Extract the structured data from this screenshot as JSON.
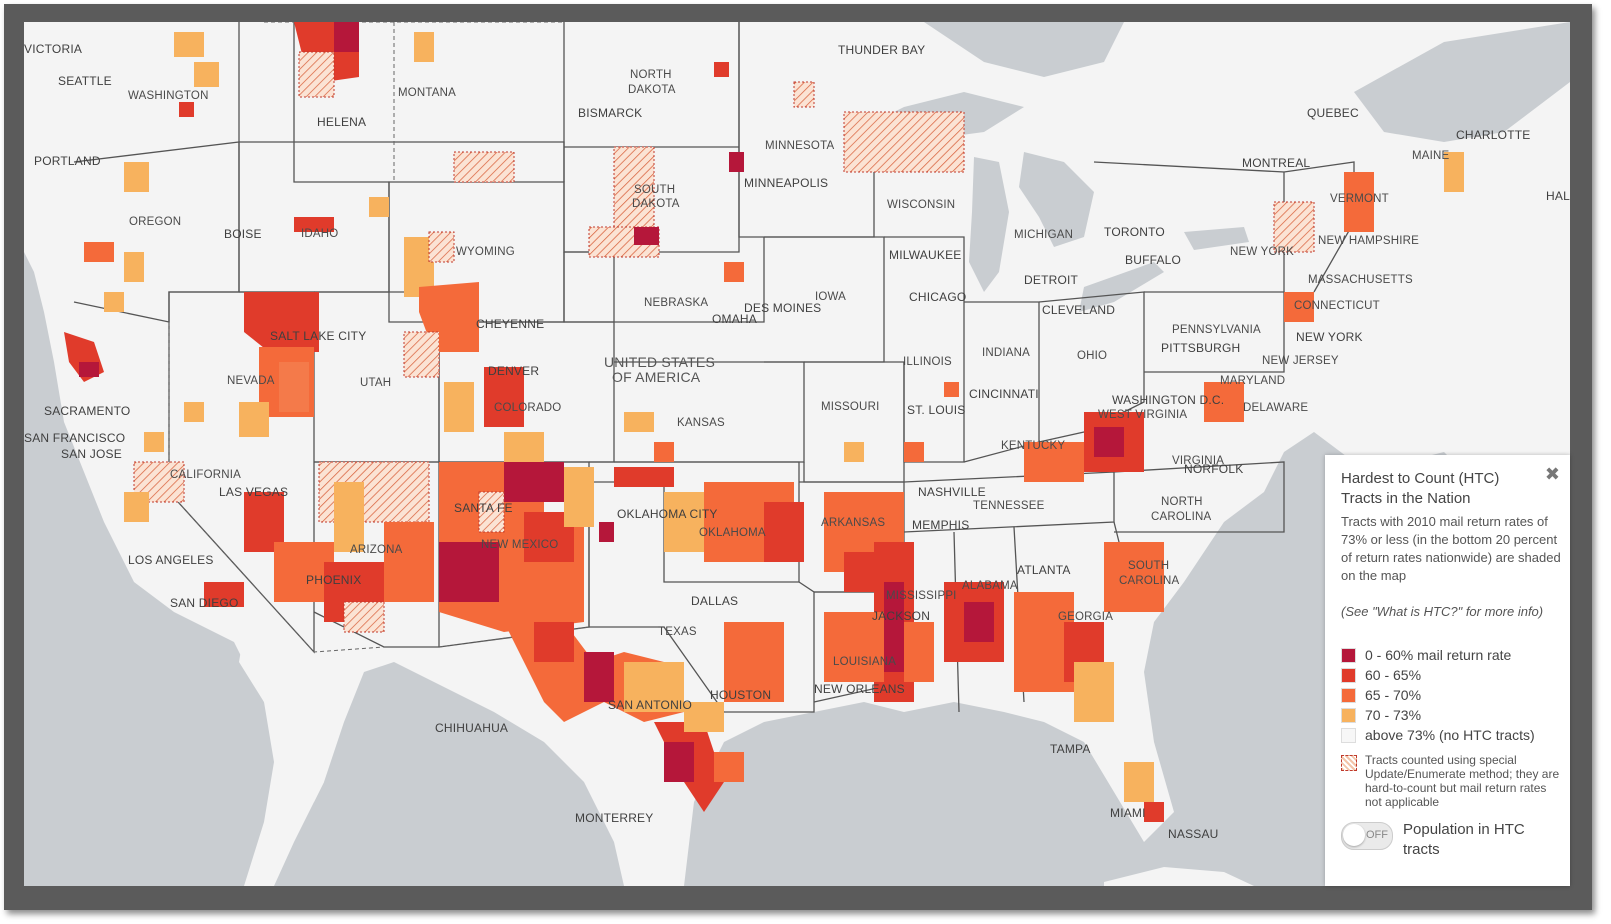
{
  "map": {
    "countries": [
      "UNITED STATES",
      "OF AMERICA"
    ],
    "states": [
      "WASHINGTON",
      "MONTANA",
      "NORTH",
      "DAKOTA",
      "MINNESOTA",
      "OREGON",
      "IDAHO",
      "WYOMING",
      "SOUTH",
      "DAKOTA",
      "WISCONSIN",
      "MICHIGAN",
      "NEW YORK",
      "VERMONT",
      "NEW HAMPSHIRE",
      "MASSACHUSETTS",
      "CONNECTICUT",
      "NEBRASKA",
      "IOWA",
      "NEVADA",
      "UTAH",
      "COLORADO",
      "KANSAS",
      "MISSOURI",
      "ILLINOIS",
      "INDIANA",
      "OHIO",
      "PENNSYLVANIA",
      "NEW JERSEY",
      "MARYLAND",
      "DELAWARE",
      "WEST VIRGINIA",
      "VIRGINIA",
      "KENTUCKY",
      "CALIFORNIA",
      "ARIZONA",
      "NEW MEXICO",
      "OKLAHOMA",
      "ARKANSAS",
      "TENNESSEE",
      "NORTH",
      "CAROLINA",
      "SOUTH",
      "CAROLINA",
      "MISSISSIPPI",
      "ALABAMA",
      "GEORGIA",
      "TEXAS",
      "LOUISIANA",
      "MAINE"
    ],
    "cities": [
      "VICTORIA",
      "SEATTLE",
      "PORTLAND",
      "HELENA",
      "BISMARCK",
      "THUNDER BAY",
      "QUEBEC",
      "CHARLOTTE",
      "HAL",
      "MONTREAL",
      "MINNEAPOLIS",
      "BOISE",
      "TORONTO",
      "BUFFALO",
      "MILWAUKEE",
      "DETROIT",
      "CHICAGO",
      "CLEVELAND",
      "PITTSBURGH",
      "NEW YORK",
      "CHEYENNE",
      "SALT LAKE CITY",
      "DES MOINES",
      "OMAHA",
      "DENVER",
      "SACRAMENTO",
      "SAN FRANCISCO",
      "SAN JOSE",
      "LAS VEGAS",
      "LOS ANGELES",
      "SAN DIEGO",
      "PHOENIX",
      "SANTA FE",
      "OKLAHOMA CITY",
      "ST. LOUIS",
      "CINCINNATI",
      "WASHINGTON D.C.",
      "NORFOLK",
      "NASHVILLE",
      "MEMPHIS",
      "ATLANTA",
      "JACKSON",
      "DALLAS",
      "HOUSTON",
      "NEW ORLEANS",
      "SAN ANTONIO",
      "CHIHUAHUA",
      "MONTERREY",
      "TAMPA",
      "MIAMI",
      "NASSAU"
    ]
  },
  "colors": {
    "c0_60": "#b5173a",
    "c60_65": "#e03b2b",
    "c65_70": "#f46a3a",
    "c70_73": "#f7b25e",
    "above73": "#f7f7f7",
    "land": "#f4f4f4",
    "water": "#c9cdd1"
  },
  "legend": {
    "title": "Hardest to Count (HTC) Tracts in the Nation",
    "description": "Tracts with 2010 mail return rates of 73% or less (in the bottom 20 percent of return rates nationwide) are shaded on the map",
    "note": "(See \"What is HTC?\" for more info)",
    "items": [
      {
        "label": "0 - 60% mail return rate",
        "color": "#b5173a"
      },
      {
        "label": "60 - 65%",
        "color": "#e03b2b"
      },
      {
        "label": "65 - 70%",
        "color": "#f46a3a"
      },
      {
        "label": "70 - 73%",
        "color": "#f7b25e"
      },
      {
        "label": "above 73% (no HTC tracts)",
        "color": "#f7f7f7"
      }
    ],
    "special_method": "Tracts counted using special Update/Enumerate method; they are hard-to-count but mail return rates not applicable",
    "toggle": {
      "state": "OFF",
      "label": "Population in HTC tracts"
    },
    "close_icon": "close-icon"
  }
}
